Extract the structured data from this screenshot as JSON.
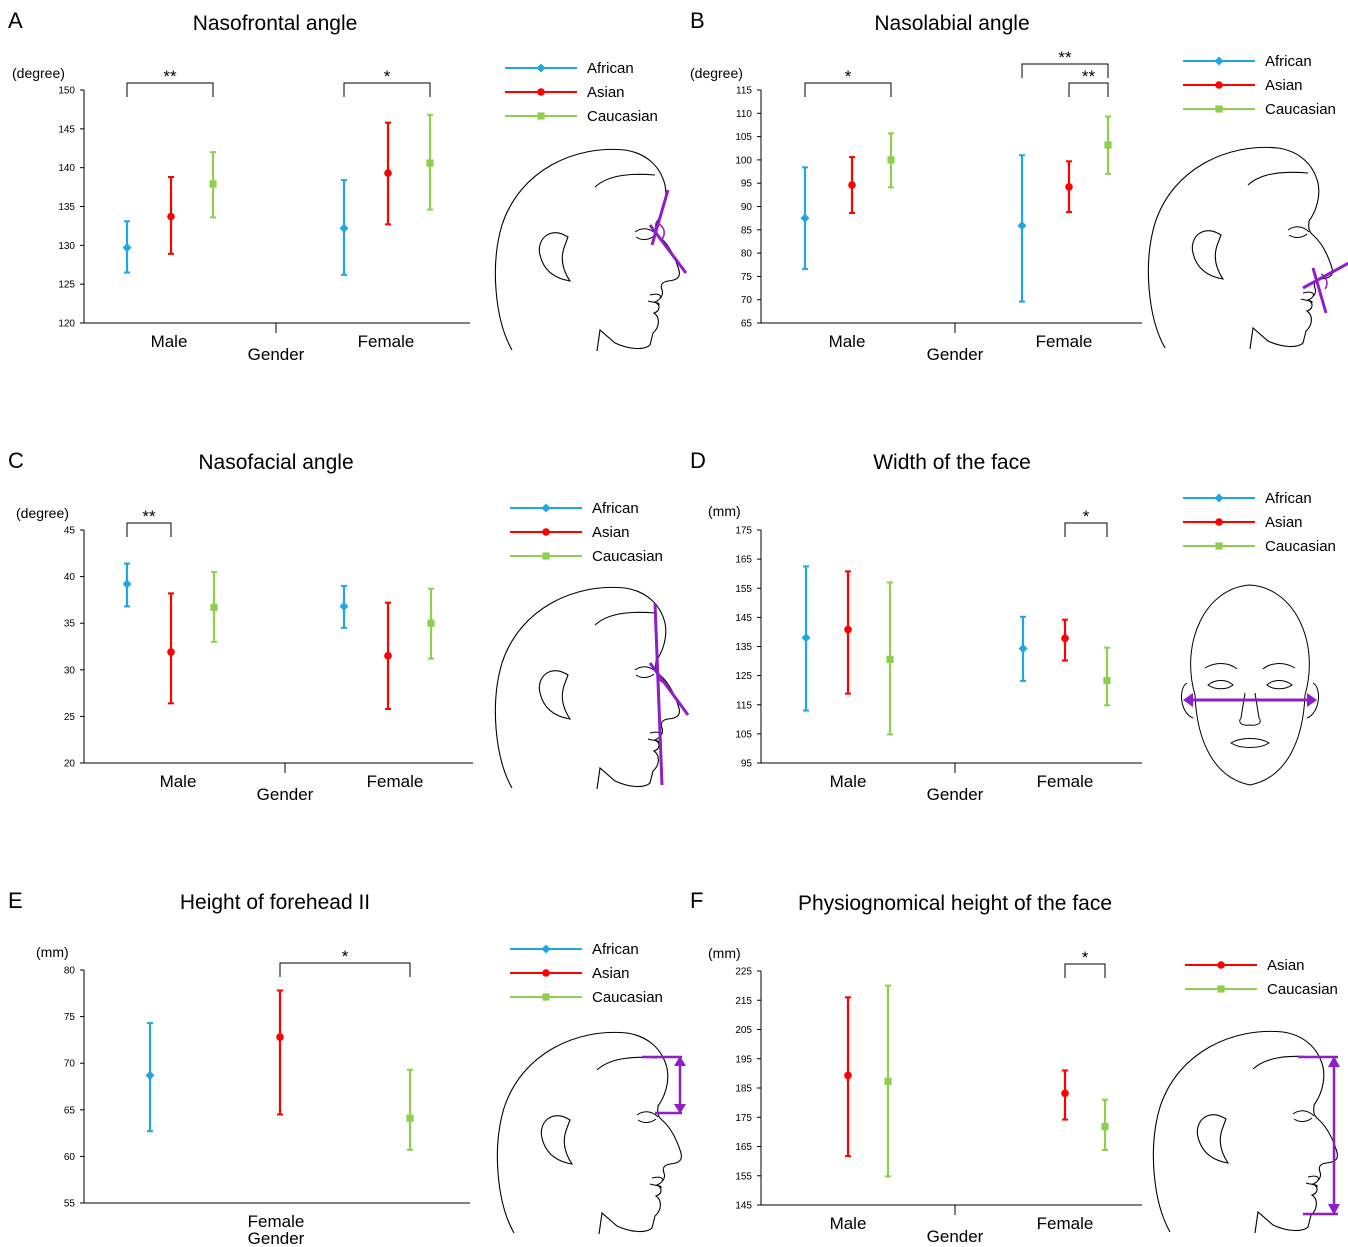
{
  "colors": {
    "African": "#1fa8e0",
    "Asian": "#ff0000",
    "Caucasian": "#8fcf4f",
    "accent": "#8e1ec8",
    "axis": "#000000"
  },
  "marker_icons": {
    "African": "diamond-marker-icon",
    "Asian": "circle-marker-icon",
    "Caucasian": "square-marker-icon"
  },
  "chart_data": [
    {
      "panel": "A",
      "type": "scatter",
      "error_bars": true,
      "title": "Nasofrontal angle",
      "ylabel": "(degree)",
      "xlabel": "Gender",
      "ylim": [
        120,
        150
      ],
      "yticks": [
        120,
        125,
        130,
        135,
        140,
        145,
        150
      ],
      "categories": [
        "Male",
        "Female"
      ],
      "legend_position": "top-right",
      "illustration": "profile-nasofrontal-icon",
      "series": [
        {
          "name": "African",
          "points": [
            {
              "mean": 129.7,
              "low": 126.5,
              "high": 133.1
            },
            {
              "mean": 132.2,
              "low": 126.2,
              "high": 138.4
            }
          ]
        },
        {
          "name": "Asian",
          "points": [
            {
              "mean": 133.7,
              "low": 128.9,
              "high": 138.8
            },
            {
              "mean": 139.3,
              "low": 132.7,
              "high": 145.8
            }
          ]
        },
        {
          "name": "Caucasian",
          "points": [
            {
              "mean": 137.9,
              "low": 133.6,
              "high": 142.0
            },
            {
              "mean": 140.6,
              "low": 134.6,
              "high": 146.8
            }
          ]
        }
      ],
      "significance": [
        {
          "category": "Male",
          "from": "African",
          "to": "Caucasian",
          "label": "**",
          "level": 1
        },
        {
          "category": "Female",
          "from": "African",
          "to": "Caucasian",
          "label": "*",
          "level": 1
        }
      ]
    },
    {
      "panel": "B",
      "type": "scatter",
      "error_bars": true,
      "title": "Nasolabial angle",
      "ylabel": "(degree)",
      "xlabel": "Gender",
      "ylim": [
        65,
        115
      ],
      "yticks": [
        65,
        70,
        75,
        80,
        85,
        90,
        95,
        100,
        105,
        110,
        115
      ],
      "categories": [
        "Male",
        "Female"
      ],
      "legend_position": "top-right",
      "illustration": "profile-nasolabial-icon",
      "series": [
        {
          "name": "African",
          "points": [
            {
              "mean": 87.5,
              "low": 76.6,
              "high": 98.4
            },
            {
              "mean": 85.9,
              "low": 69.6,
              "high": 101.0
            }
          ]
        },
        {
          "name": "Asian",
          "points": [
            {
              "mean": 94.6,
              "low": 88.6,
              "high": 100.6
            },
            {
              "mean": 94.2,
              "low": 88.8,
              "high": 99.7
            }
          ]
        },
        {
          "name": "Caucasian",
          "points": [
            {
              "mean": 100.0,
              "low": 94.1,
              "high": 105.7
            },
            {
              "mean": 103.2,
              "low": 97.0,
              "high": 109.3
            }
          ]
        }
      ],
      "significance": [
        {
          "category": "Male",
          "from": "African",
          "to": "Caucasian",
          "label": "*",
          "level": 1
        },
        {
          "category": "Female",
          "from": "African",
          "to": "Caucasian",
          "label": "**",
          "level": 2
        },
        {
          "category": "Female",
          "from": "Asian",
          "to": "Caucasian",
          "label": "**",
          "level": 1
        }
      ]
    },
    {
      "panel": "C",
      "type": "scatter",
      "error_bars": true,
      "title": "Nasofacial angle",
      "ylabel": "(degree)",
      "xlabel": "Gender",
      "ylim": [
        20,
        45
      ],
      "yticks": [
        20,
        25,
        30,
        35,
        40,
        45
      ],
      "categories": [
        "Male",
        "Female"
      ],
      "legend_position": "top-right",
      "illustration": "profile-nasofacial-icon",
      "series": [
        {
          "name": "African",
          "points": [
            {
              "mean": 39.2,
              "low": 36.8,
              "high": 41.4
            },
            {
              "mean": 36.8,
              "low": 34.5,
              "high": 39.0
            }
          ]
        },
        {
          "name": "Asian",
          "points": [
            {
              "mean": 31.9,
              "low": 26.4,
              "high": 38.2
            },
            {
              "mean": 31.5,
              "low": 25.8,
              "high": 37.2
            }
          ]
        },
        {
          "name": "Caucasian",
          "points": [
            {
              "mean": 36.7,
              "low": 33.0,
              "high": 40.5
            },
            {
              "mean": 35.0,
              "low": 31.2,
              "high": 38.7
            }
          ]
        }
      ],
      "significance": [
        {
          "category": "Male",
          "from": "African",
          "to": "Asian",
          "label": "**",
          "level": 1
        }
      ]
    },
    {
      "panel": "D",
      "type": "scatter",
      "error_bars": true,
      "title": "Width of the face",
      "ylabel": "(mm)",
      "xlabel": "Gender",
      "ylim": [
        95,
        175
      ],
      "yticks": [
        95,
        105,
        115,
        125,
        135,
        145,
        155,
        165,
        175
      ],
      "categories": [
        "Male",
        "Female"
      ],
      "legend_position": "top-right",
      "illustration": "front-face-width-icon",
      "series": [
        {
          "name": "African",
          "points": [
            {
              "mean": 138.0,
              "low": 113.0,
              "high": 162.5
            },
            {
              "mean": 134.3,
              "low": 123.2,
              "high": 145.2
            }
          ]
        },
        {
          "name": "Asian",
          "points": [
            {
              "mean": 140.8,
              "low": 118.8,
              "high": 160.8
            },
            {
              "mean": 137.8,
              "low": 130.2,
              "high": 144.2
            }
          ]
        },
        {
          "name": "Caucasian",
          "points": [
            {
              "mean": 130.6,
              "low": 104.8,
              "high": 157.0
            },
            {
              "mean": 123.3,
              "low": 114.8,
              "high": 134.6
            }
          ]
        }
      ],
      "significance": [
        {
          "category": "Female",
          "from": "Asian",
          "to": "Caucasian",
          "label": "*",
          "level": 1
        }
      ]
    },
    {
      "panel": "E",
      "type": "scatter",
      "error_bars": true,
      "title": "Height of forehead II",
      "ylabel": "(mm)",
      "xlabel": "Gender",
      "ylim": [
        55,
        80
      ],
      "yticks": [
        55,
        60,
        65,
        70,
        75,
        80
      ],
      "categories": [
        "Female"
      ],
      "legend_position": "top-right",
      "illustration": "profile-forehead-height-icon",
      "series": [
        {
          "name": "African",
          "points": [
            {
              "mean": 68.7,
              "low": 62.7,
              "high": 74.3
            }
          ]
        },
        {
          "name": "Asian",
          "points": [
            {
              "mean": 72.8,
              "low": 64.5,
              "high": 77.8
            }
          ]
        },
        {
          "name": "Caucasian",
          "points": [
            {
              "mean": 64.1,
              "low": 60.7,
              "high": 69.3
            }
          ]
        }
      ],
      "significance": [
        {
          "category": "Female",
          "from": "Asian",
          "to": "Caucasian",
          "label": "*",
          "level": 1
        }
      ]
    },
    {
      "panel": "F",
      "type": "scatter",
      "error_bars": true,
      "title": "Physiognomical height of the face",
      "ylabel": "(mm)",
      "xlabel": "Gender",
      "ylim": [
        145,
        225
      ],
      "yticks": [
        145,
        155,
        165,
        175,
        185,
        195,
        205,
        215,
        225
      ],
      "categories": [
        "Male",
        "Female"
      ],
      "legend_position": "top-right",
      "illustration": "profile-face-height-icon",
      "series": [
        {
          "name": "Asian",
          "points": [
            {
              "mean": 189.3,
              "low": 161.7,
              "high": 216.0
            },
            {
              "mean": 183.2,
              "low": 174.2,
              "high": 191.0
            }
          ]
        },
        {
          "name": "Caucasian",
          "points": [
            {
              "mean": 187.3,
              "low": 154.8,
              "high": 220.0
            },
            {
              "mean": 171.8,
              "low": 163.8,
              "high": 181.0
            }
          ]
        }
      ],
      "significance": [
        {
          "category": "Female",
          "from": "Asian",
          "to": "Caucasian",
          "label": "*",
          "level": 1
        }
      ]
    }
  ]
}
